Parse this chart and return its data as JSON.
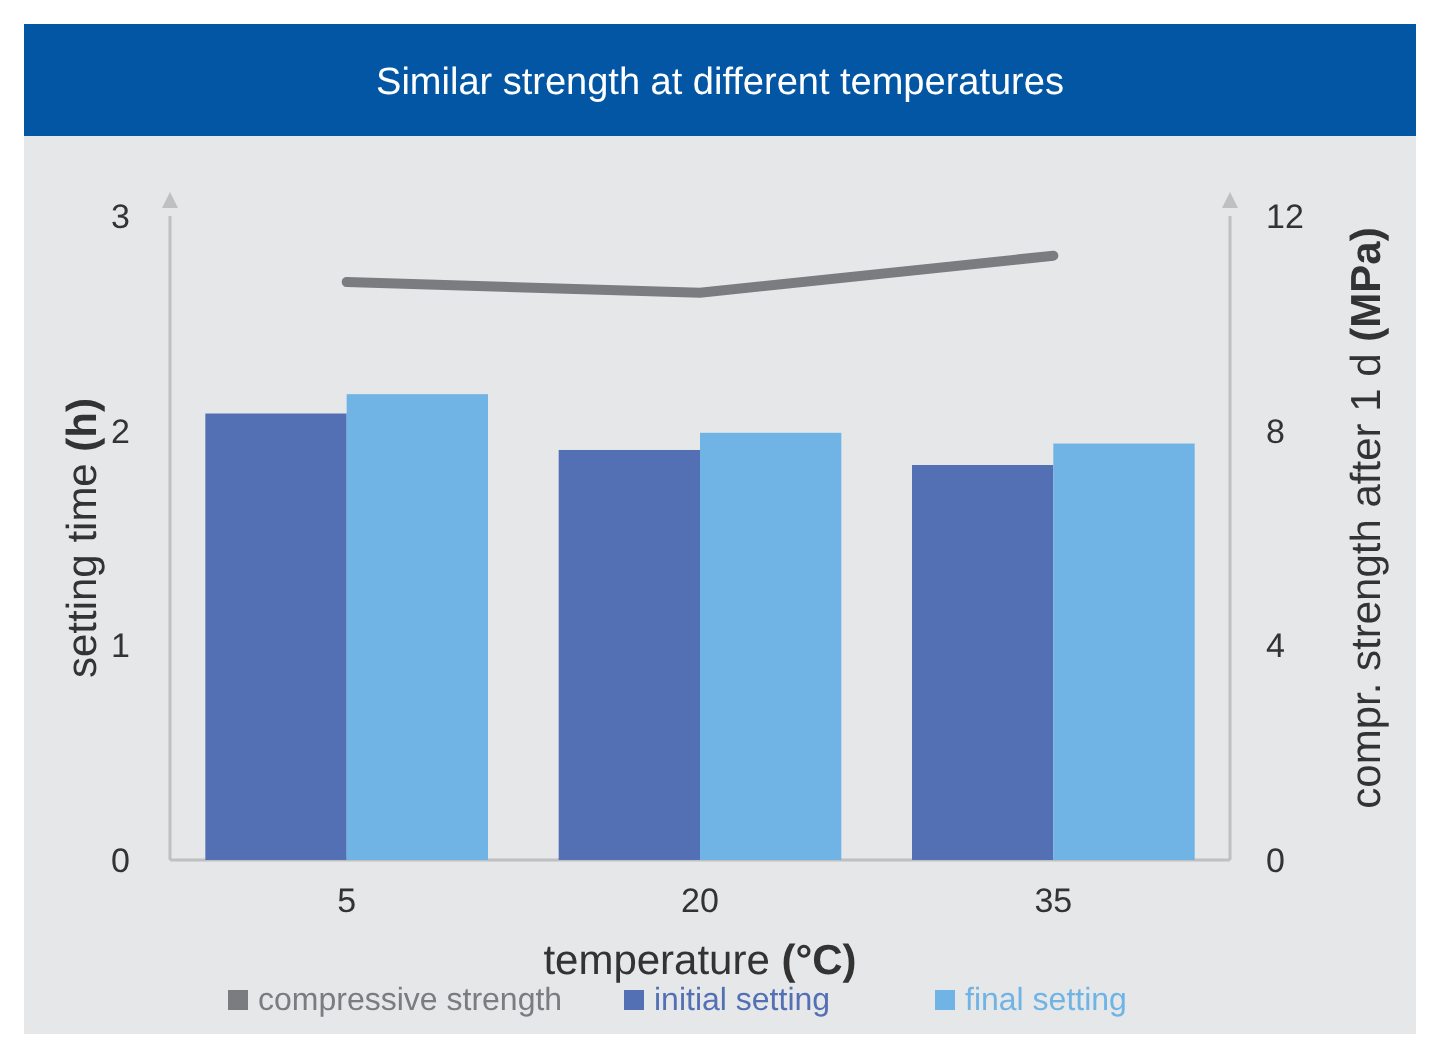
{
  "chart_data": {
    "type": "bar",
    "title": "Similar strength at different temperatures",
    "xlabel": "temperature (°C)",
    "ylabel": "setting time (h)",
    "y2label": "compr. strength after 1 d (MPa)",
    "categories": [
      "5",
      "20",
      "35"
    ],
    "series": [
      {
        "name": "compressive strength",
        "type": "line",
        "axis": "y2",
        "color": "#7b7c7f",
        "values": [
          10.77,
          10.57,
          11.26
        ]
      },
      {
        "name": "initial setting",
        "color": "#5470b5",
        "values": [
          2.08,
          1.91,
          1.84
        ]
      },
      {
        "name": "final setting",
        "color": "#6fb4e4",
        "values": [
          2.17,
          1.99,
          1.94
        ]
      }
    ],
    "ylim": [
      0,
      3
    ],
    "yticks": [
      0,
      1,
      2,
      3
    ],
    "y2lim": [
      0,
      12
    ],
    "y2ticks": [
      0,
      4,
      8,
      12
    ],
    "grid": false,
    "legend": "bottom"
  }
}
